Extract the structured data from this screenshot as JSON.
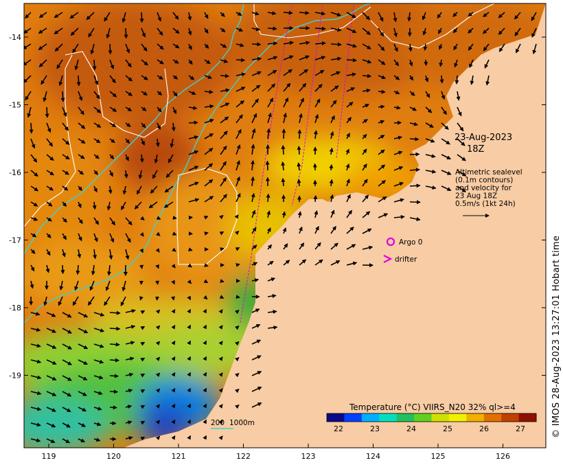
{
  "map": {
    "date": "23-Aug-2023",
    "time": "18Z",
    "legend_text": [
      "Altimetric sealevel",
      "(0.1m contours)",
      "and velocity for",
      "23 Aug 18Z",
      "0.5m/s (1kt 24h)"
    ],
    "argo_label": "Argo 0",
    "drifter_label": "drifter",
    "scale_labels": [
      "200",
      "1000m"
    ],
    "lat_labels": [
      "-14",
      "-15",
      "-16",
      "-17",
      "-18",
      "-19"
    ],
    "lon_labels": [
      "119",
      "120",
      "121",
      "122",
      "123",
      "124",
      "125",
      "126"
    ],
    "colorbar": {
      "title": "Temperature (°C) VIIRS_N20 32% ql>=4",
      "ticks": [
        "22",
        "23",
        "24",
        "25",
        "26",
        "27"
      ],
      "colors": [
        "#0a0a8a",
        "#0040ff",
        "#00b0ff",
        "#00e0c0",
        "#20c060",
        "#60d020",
        "#d0e000",
        "#f0f000",
        "#f0b000",
        "#e07000",
        "#c04000",
        "#901000"
      ]
    },
    "colors": {
      "land": "#f8cca4",
      "contour": "#ffffff",
      "isobath": "#40d0d0",
      "track": "#e000e0",
      "argo": "#e000e0"
    },
    "credit": "© IMOS 28-Aug-2023 13:27:01 Hobart time"
  }
}
